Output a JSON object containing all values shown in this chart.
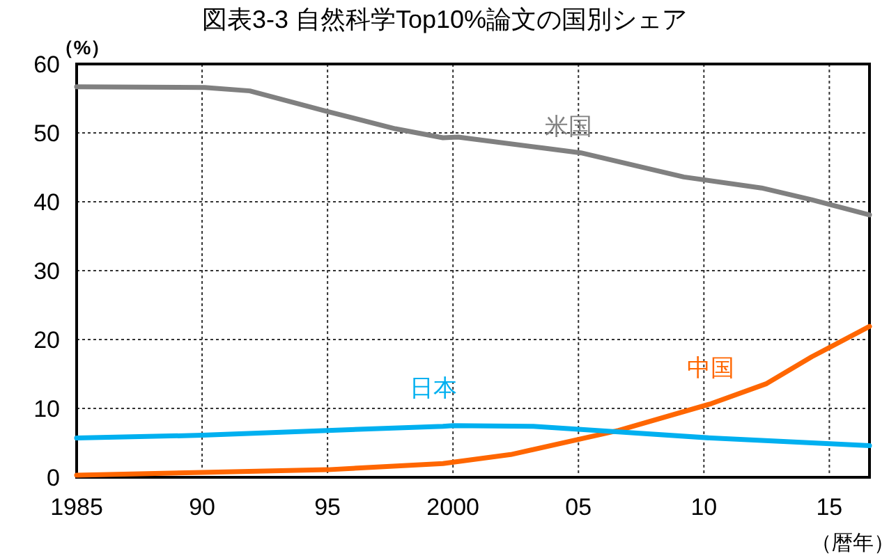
{
  "chart_data": {
    "type": "line",
    "title": "図表3-3 自然科学Top10%論文の国別シェア",
    "ylabel": "（%）",
    "xlabel": "（暦年）",
    "xlim": [
      1985,
      2016.6
    ],
    "xticks": [
      {
        "value": 1985,
        "label": "1985"
      },
      {
        "value": 1990,
        "label": "90"
      },
      {
        "value": 1995,
        "label": "95"
      },
      {
        "value": 2000,
        "label": "2000"
      },
      {
        "value": 2005,
        "label": "05"
      },
      {
        "value": 2010,
        "label": "10"
      },
      {
        "value": 2015,
        "label": "15"
      }
    ],
    "ylim": [
      0,
      60
    ],
    "yticks": [
      0,
      10,
      20,
      30,
      40,
      50,
      60
    ],
    "grid": true,
    "legend": false,
    "line_style": "solid",
    "marker": "none",
    "series": [
      {
        "name": "米国",
        "color": "#808080",
        "x": [
          1985,
          1990.1,
          1991.9,
          1994.9,
          1997.7,
          1999.6,
          2000.2,
          2003.6,
          2005.1,
          2009.2,
          2012.3,
          2014.3,
          2016.6
        ],
        "values": [
          56.7,
          56.6,
          56.1,
          53.2,
          50.6,
          49.3,
          49.4,
          47.8,
          47.1,
          43.6,
          42.0,
          40.3,
          38.1
        ]
      },
      {
        "name": "中国",
        "color": "#ff6600",
        "x": [
          1985,
          1990,
          1995,
          1999.6,
          2002.3,
          2006.6,
          2010.3,
          2012.5,
          2014.3,
          2016.6
        ],
        "values": [
          0.3,
          0.7,
          1.1,
          2.0,
          3.3,
          6.8,
          10.7,
          13.6,
          17.5,
          21.9
        ]
      },
      {
        "name": "日本",
        "color": "#00b0f0",
        "x": [
          1985,
          1990,
          1995,
          1999.6,
          2000,
          2003.2,
          2006.6,
          2010.3,
          2016.6
        ],
        "values": [
          5.7,
          6.1,
          6.8,
          7.4,
          7.5,
          7.4,
          6.6,
          5.7,
          4.6
        ]
      }
    ]
  }
}
